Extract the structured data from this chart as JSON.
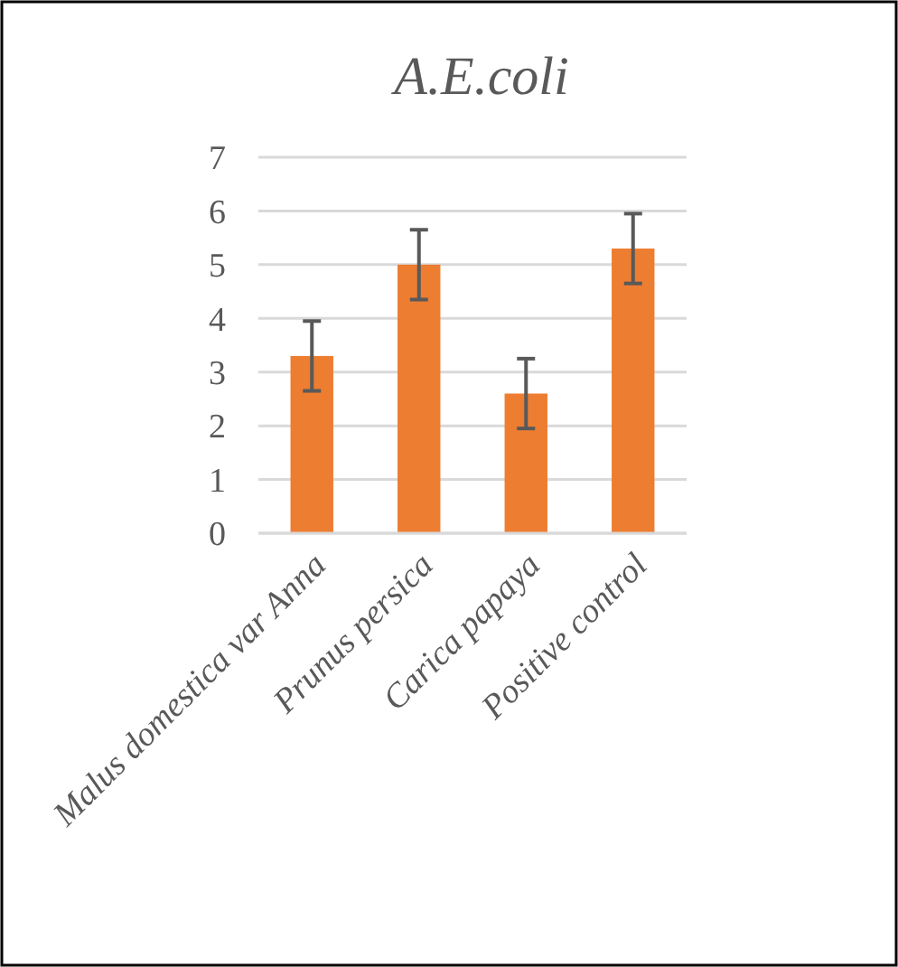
{
  "chart_data": {
    "type": "bar",
    "title": "A.E.coli",
    "categories": [
      "Malus domestica var Anna",
      "Prunus persica",
      "Carica papaya",
      "Positive control"
    ],
    "values": [
      3.3,
      5.0,
      2.6,
      5.3
    ],
    "errors": [
      0.65,
      0.65,
      0.65,
      0.65
    ],
    "color": "#ed7d31",
    "ylim": [
      0,
      7
    ],
    "yticks": [
      0,
      1,
      2,
      3,
      4,
      5,
      6,
      7
    ],
    "grid": "y"
  }
}
